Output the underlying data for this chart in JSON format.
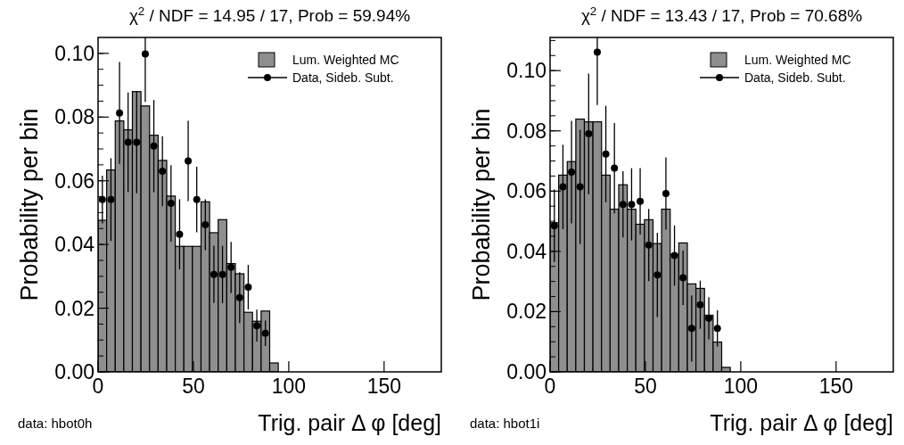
{
  "chart_data": [
    {
      "type": "histogram",
      "title": "χ$^{2}$ / NDF = 14.95 / 17, Prob = 59.94%",
      "xlabel": "Trig. pair Δ φ [deg]",
      "ylabel": "Probability per bin",
      "annotations": [
        "data: hbot0h"
      ],
      "bins": [
        0,
        4.5,
        9,
        13.5,
        18,
        22.5,
        27,
        31.5,
        36,
        40.5,
        45,
        49.5,
        54,
        58.5,
        63,
        67.5,
        72,
        76.5,
        81,
        85.5,
        90,
        94.5
      ],
      "series": [
        {
          "name": "Lum. Weighted MC",
          "color": "#8f8f8f",
          "values": [
            0.0476,
            0.0634,
            0.0788,
            0.076,
            0.088,
            0.0835,
            0.0743,
            0.0664,
            0.0552,
            0.0394,
            0.0394,
            0.0394,
            0.0534,
            0.0437,
            0.0478,
            0.034,
            0.0308,
            0.0187,
            0.0159,
            0.0191,
            0.0028
          ]
        },
        {
          "name": "Data, Sideb. Subt.",
          "type": "scatter",
          "color": "#000000",
          "x": [
            2.25,
            6.75,
            11.25,
            15.75,
            20.25,
            24.75,
            29.25,
            33.75,
            38.25,
            42.75,
            47.25,
            51.75,
            56.25,
            60.75,
            65.25,
            69.75,
            74.25,
            78.75,
            83.25,
            87.75
          ],
          "values": [
            0.0541,
            0.0541,
            0.0813,
            0.0721,
            0.0721,
            0.0998,
            0.0709,
            0.063,
            0.0529,
            0.0432,
            0.0662,
            0.0541,
            0.0462,
            0.0306,
            0.0306,
            0.0328,
            0.0233,
            0.0266,
            0.0145,
            0.0121
          ],
          "errors": [
            0.0075,
            0.013,
            0.016,
            0.0156,
            0.016,
            0.015,
            0.0145,
            0.011,
            0.012,
            0.011,
            0.0126,
            0.0103,
            0.008,
            0.009,
            0.009,
            0.008,
            0.008,
            0.007,
            0.005,
            0.004
          ]
        }
      ],
      "xlim": [
        0,
        180
      ],
      "xticks": [
        0,
        50,
        100,
        150
      ],
      "ylim": [
        0,
        0.105
      ],
      "yticks": [
        {
          "value": 0,
          "label": "0.00"
        },
        {
          "value": 0.02,
          "label": "0.02"
        },
        {
          "value": 0.04,
          "label": "0.04"
        },
        {
          "value": 0.06,
          "label": "0.06"
        },
        {
          "value": 0.08,
          "label": "0.08"
        },
        {
          "value": 0.1,
          "label": "0.10"
        }
      ],
      "legend": "top right",
      "marker": "circle"
    },
    {
      "type": "histogram",
      "title": "χ$^{2}$ / NDF = 13.43 / 17, Prob = 70.68%",
      "xlabel": "Trig. pair Δ φ [deg]",
      "ylabel": "Probability per bin",
      "annotations": [
        "data: hbot1i"
      ],
      "bins": [
        0,
        4.5,
        9,
        13.5,
        18,
        22.5,
        27,
        31.5,
        36,
        40.5,
        45,
        49.5,
        54,
        58.5,
        63,
        67.5,
        72,
        76.5,
        81,
        85.5,
        90,
        94.5
      ],
      "series": [
        {
          "name": "Lum. Weighted MC",
          "color": "#8f8f8f",
          "values": [
            0.0495,
            0.0653,
            0.0698,
            0.0839,
            0.083,
            0.083,
            0.0653,
            0.054,
            0.0621,
            0.054,
            0.049,
            0.0505,
            0.0426,
            0.054,
            0.039,
            0.0428,
            0.0292,
            0.0277,
            0.0188,
            0.0099,
            0.0015
          ]
        },
        {
          "name": "Data, Sideb. Subt.",
          "type": "scatter",
          "color": "#000000",
          "x": [
            2.25,
            6.75,
            11.25,
            15.75,
            20.25,
            24.75,
            29.25,
            33.75,
            38.25,
            42.75,
            47.25,
            51.75,
            56.25,
            60.75,
            65.25,
            69.75,
            74.25,
            78.75,
            83.25,
            87.75
          ],
          "values": [
            0.0485,
            0.0614,
            0.0663,
            0.0614,
            0.079,
            0.1061,
            0.0723,
            0.0676,
            0.0556,
            0.0556,
            0.0566,
            0.0421,
            0.0322,
            0.0592,
            0.0386,
            0.0312,
            0.0144,
            0.0223,
            0.0178,
            0.0144
          ],
          "errors": [
            0.012,
            0.014,
            0.017,
            0.019,
            0.02,
            0.0175,
            0.016,
            0.015,
            0.011,
            0.012,
            0.011,
            0.012,
            0.014,
            0.012,
            0.01,
            0.009,
            0.011,
            0.008,
            0.007,
            0.006
          ]
        }
      ],
      "xlim": [
        0,
        180
      ],
      "xticks": [
        0,
        50,
        100,
        150
      ],
      "ylim": [
        0,
        0.111
      ],
      "yticks": [
        {
          "value": 0,
          "label": "0.00"
        },
        {
          "value": 0.02,
          "label": "0.02"
        },
        {
          "value": 0.04,
          "label": "0.04"
        },
        {
          "value": 0.06,
          "label": "0.06"
        },
        {
          "value": 0.08,
          "label": "0.08"
        },
        {
          "value": 0.1,
          "label": "0.10"
        }
      ],
      "legend": "top right",
      "marker": "circle"
    }
  ]
}
